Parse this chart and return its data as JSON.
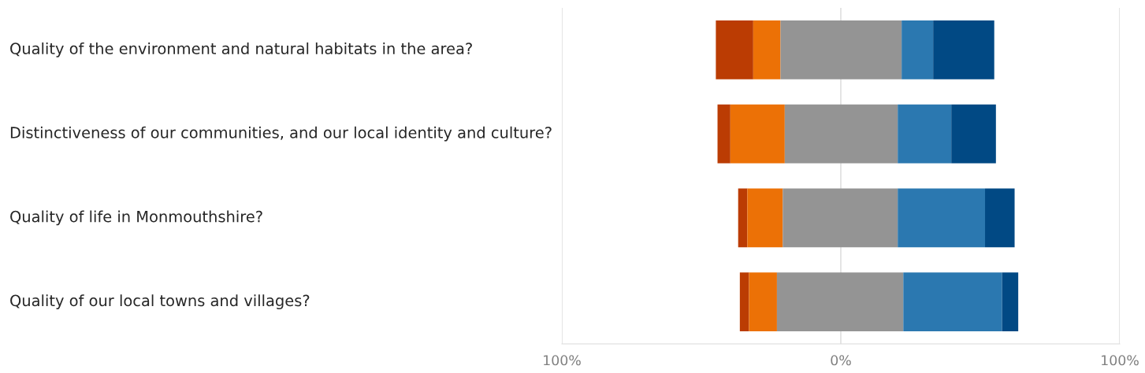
{
  "chart_data": {
    "type": "bar",
    "orientation": "horizontal",
    "categories": [
      "Quality of the environment and natural habitats in the area?",
      "Distinctiveness of our communities, and our local identity and culture?",
      "Quality of life in Monmouthshire?",
      "Quality of our local towns and villages?"
    ],
    "series": [
      {
        "color": "#bb3c03",
        "base": [
          -44.8,
          -44.2,
          -36.8,
          -36.2
        ],
        "values": [
          13.4,
          4.6,
          3.3,
          3.3
        ]
      },
      {
        "color": "#ec7106",
        "base": [
          -31.4,
          -39.6,
          -33.5,
          -32.9
        ],
        "values": [
          9.8,
          19.5,
          12.7,
          10.0
        ]
      },
      {
        "color": "#949494",
        "base": [
          -21.6,
          -20.1,
          -20.8,
          -22.9
        ],
        "values": [
          43.4,
          40.5,
          41.2,
          45.3
        ]
      },
      {
        "color": "#2b78b0",
        "base": [
          21.8,
          20.4,
          20.4,
          22.4
        ],
        "values": [
          11.3,
          19.2,
          31.3,
          35.4
        ]
      },
      {
        "color": "#014984",
        "base": [
          33.1,
          39.6,
          51.7,
          57.8
        ],
        "values": [
          21.9,
          16.0,
          10.6,
          5.8
        ]
      }
    ],
    "xlim": [
      -100,
      100
    ],
    "xticks": [
      {
        "value": -100,
        "label": "100%"
      },
      {
        "value": 0,
        "label": "0%"
      },
      {
        "value": 100,
        "label": "100%"
      }
    ],
    "grid": "x"
  }
}
